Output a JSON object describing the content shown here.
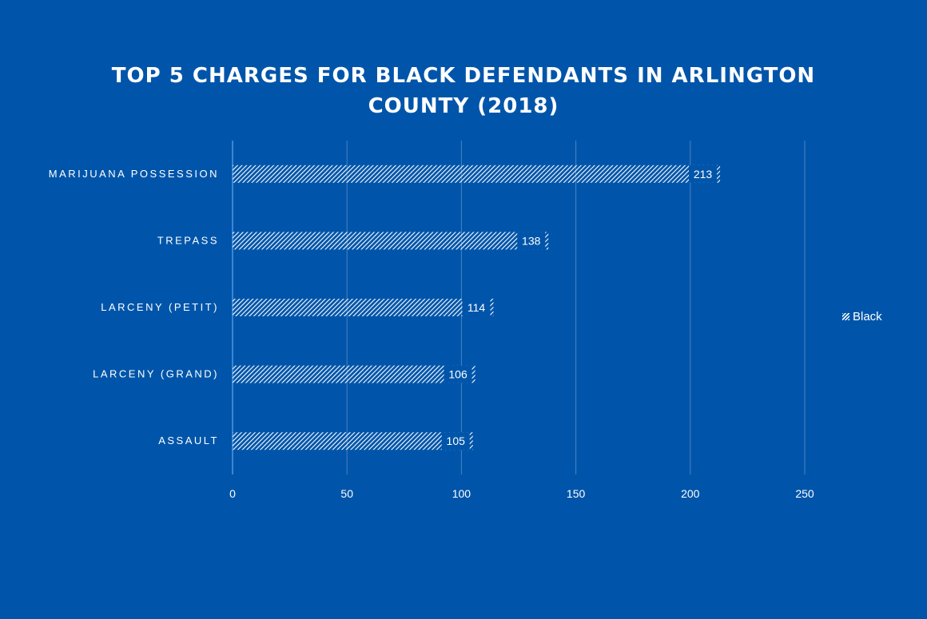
{
  "chart_data": {
    "type": "bar",
    "orientation": "horizontal",
    "title_lines": [
      "TOP 5 CHARGES FOR BLACK DEFENDANTS  IN ARLINGTON",
      "COUNTY (2018)"
    ],
    "categories": [
      "MARIJUANA POSSESSION",
      "TREPASS",
      "LARCENY (PETIT)",
      "LARCENY (GRAND)",
      "ASSAULT"
    ],
    "series": [
      {
        "name": "Black",
        "values": [
          213,
          138,
          114,
          106,
          105
        ]
      }
    ],
    "xlim": [
      0,
      250
    ],
    "xticks": [
      0,
      50,
      100,
      150,
      200,
      250
    ],
    "grid": true,
    "legend_position": "right",
    "colors": {
      "background": "#0055AA",
      "bar_hatch": "#ffffff",
      "gridline": "#4A82C2",
      "axis": "#5FA8F0"
    }
  }
}
